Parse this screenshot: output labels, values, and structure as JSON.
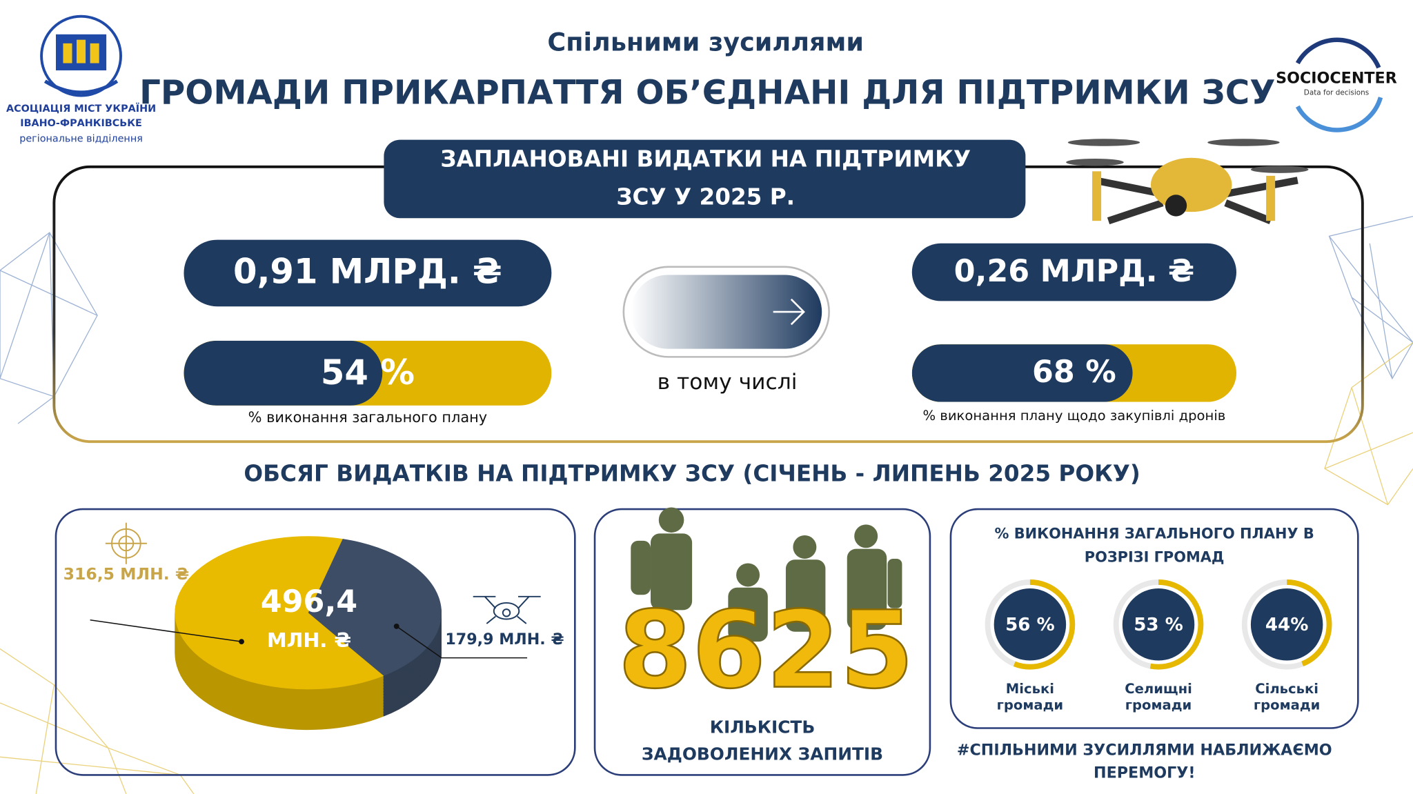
{
  "header": {
    "subtitle": "Спільними зусиллями",
    "title": "ГРОМАДИ ПРИКАРПАТТЯ ОБ’ЄДНАНІ ДЛЯ ПІДТРИМКИ ЗСУ",
    "logo_left": {
      "lines": [
        "АСОЦІАЦІЯ МІСТ УКРАЇНИ",
        "ІВАНО-ФРАНКІВСЬКЕ",
        "регіональне відділення"
      ]
    },
    "logo_right": {
      "name": "SOCIOCENTER",
      "tagline": "Data for decisions"
    }
  },
  "planned": {
    "title_lines": [
      "ЗАПЛАНОВАНІ ВИДАТКИ НА ПІДТРИМКУ",
      "ЗСУ У 2025 Р."
    ],
    "total": {
      "amount": "0,91 МЛРД. ₴",
      "completion": 54,
      "completion_label": "54 %",
      "caption": "% виконання загального плану"
    },
    "link": "в тому числі",
    "drones": {
      "amount": "0,26 МЛРД. ₴",
      "completion": 68,
      "completion_label": "68 %",
      "caption": "% виконання плану щодо закупівлі дронів"
    }
  },
  "spending": {
    "title": "ОБСЯГ ВИДАТКІВ НА ПІДТРИМКУ ЗСУ (СІЧЕНЬ - ЛИПЕНЬ 2025 РОКУ)",
    "pie": {
      "total_value": "496,4",
      "total_unit": "МЛН. ₴",
      "values": [
        316.5,
        179.9
      ],
      "value_labels": [
        "316,5 МЛН. ₴",
        "179,9 МЛН. ₴"
      ],
      "colors": [
        "#e8bb00",
        "#3d4d66"
      ]
    },
    "requests": {
      "count": "8625",
      "caption_lines": [
        "КІЛЬКІСТЬ",
        "ЗАДОВОЛЕНИХ ЗАПИТІВ"
      ]
    },
    "communities": {
      "title_lines": [
        "% ВИКОНАННЯ ЗАГАЛЬНОГО ПЛАНУ В",
        "РОЗРІЗІ ГРОМАД"
      ],
      "items": [
        {
          "name_lines": [
            "Міські",
            "громади"
          ],
          "value": 56,
          "label": "56 %"
        },
        {
          "name_lines": [
            "Селищні",
            "громади"
          ],
          "value": 53,
          "label": "53 %"
        },
        {
          "name_lines": [
            "Сільські",
            "громади"
          ],
          "value": 44,
          "label": "44%"
        }
      ]
    }
  },
  "footer_lines": [
    "#СПІЛЬНИМИ ЗУСИЛЛЯМИ НАБЛИЖАЄМО",
    "ПЕРЕМОГУ!"
  ]
}
